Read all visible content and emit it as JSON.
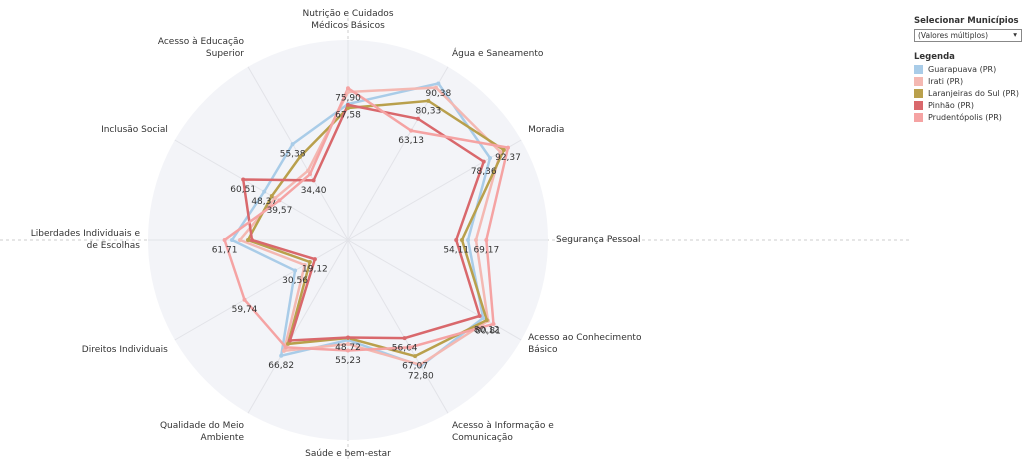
{
  "chart_data": {
    "type": "radar",
    "categories": [
      "Nutrição e Cuidados Médicos Básicos",
      "Água e Saneamento",
      "Moradia",
      "Segurança Pessoal",
      "Acesso ao Conhecimento Básico",
      "Acesso à Informação e Comunicação",
      "Saúde e bem-estar",
      "Qualidade do Meio Ambiente",
      "Direitos Individuais",
      "Liberdades Individuais e de Escolhas",
      "Inclusão Social",
      "Acesso à Educação Superior"
    ],
    "rlim": [
      0,
      100
    ],
    "series": [
      {
        "name": "Guarapuava (PR)",
        "color": "#a9cce8",
        "values": [
          68,
          90.38,
          82,
          60,
          78,
          72.8,
          50,
          66.82,
          30.56,
          58,
          48.37,
          55.38
        ],
        "value_labels": [
          null,
          "90,38",
          null,
          null,
          null,
          "72,80",
          null,
          "66,82",
          "30,56",
          null,
          "48,37",
          "55,38"
        ]
      },
      {
        "name": "Irati (PR)",
        "color": "#f4b8b2",
        "values": [
          74,
          88,
          88,
          64,
          80.81,
          72,
          52,
          64,
          25,
          54,
          42,
          40
        ],
        "value_labels": [
          null,
          null,
          null,
          null,
          "80,81",
          null,
          null,
          null,
          null,
          null,
          null,
          null
        ]
      },
      {
        "name": "Laranjeiras do Sul (PR)",
        "color": "#b9a04c",
        "values": [
          66,
          80.33,
          90,
          57,
          80.12,
          67.07,
          49,
          60,
          22,
          50,
          44,
          48
        ],
        "value_labels": [
          null,
          "80,33",
          null,
          null,
          "80,12",
          "67,07",
          null,
          null,
          null,
          null,
          null,
          null
        ]
      },
      {
        "name": "Pinhão (PR)",
        "color": "#d9686c",
        "values": [
          67.58,
          70,
          78.36,
          54.11,
          76,
          56.64,
          48.72,
          58,
          19.12,
          48,
          60.51,
          34.4
        ],
        "value_labels": [
          "67,58",
          null,
          "78,36",
          "54,11",
          null,
          "56,64",
          "48,72",
          null,
          "19,12",
          null,
          "60,51",
          "34,40"
        ]
      },
      {
        "name": "Prudentópolis (PR)",
        "color": "#f5a3a3",
        "values": [
          75.9,
          63.13,
          92.37,
          69.17,
          84,
          62,
          55.23,
          62,
          59.74,
          61.71,
          39.57,
          38
        ],
        "value_labels": [
          "75,90",
          "63,13",
          "92,37",
          "69,17",
          null,
          null,
          "55,23",
          null,
          "59,74",
          "61,71",
          "39,57",
          null
        ]
      }
    ],
    "filter_label": "Selecionar Municípios",
    "filter_value": "(Valores múltiplos)",
    "legend_title": "Legenda"
  }
}
